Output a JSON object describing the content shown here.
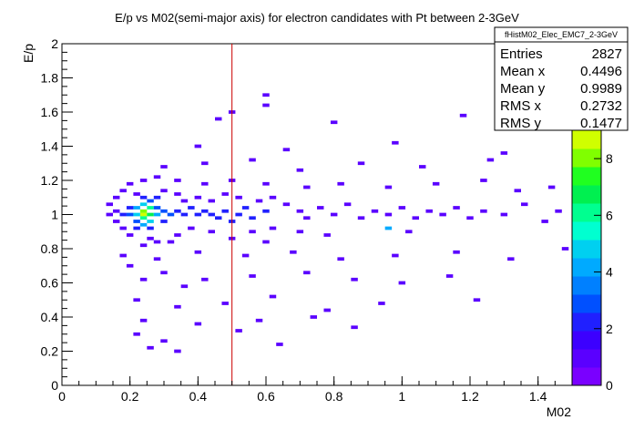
{
  "chart_data": {
    "type": "heatmap",
    "title": "E/p vs M02(semi-major axis) for electron candidates with Pt between 2-3GeV",
    "xlabel": "M02",
    "ylabel": "E/p",
    "xlim": [
      0,
      1.5
    ],
    "ylim": [
      0,
      2
    ],
    "x_ticks": [
      "0",
      "0.2",
      "0.4",
      "0.6",
      "0.8",
      "1",
      "1.2",
      "1.4"
    ],
    "y_ticks": [
      "0",
      "0.2",
      "0.4",
      "0.6",
      "0.8",
      "1",
      "1.2",
      "1.4",
      "1.6",
      "1.8",
      "2"
    ],
    "z_range": [
      0,
      9
    ],
    "z_ticks": [
      "0",
      "2",
      "4",
      "6",
      "8"
    ],
    "cut_line_x": 0.5,
    "stats": {
      "name": "fHistM02_Elec_EMC7_2-3GeV",
      "rows": [
        {
          "label": "Entries",
          "value": "2827"
        },
        {
          "label": "Mean x",
          "value": "0.4496"
        },
        {
          "label": "Mean y",
          "value": "0.9989"
        },
        {
          "label": "RMS x",
          "value": "0.2732"
        },
        {
          "label": "RMS y",
          "value": "0.1477"
        }
      ]
    },
    "palette": [
      "#7a00ff",
      "#5a00ff",
      "#3c00ff",
      "#2020ff",
      "#0050ff",
      "#0080ff",
      "#00aaff",
      "#00d0f0",
      "#00ffd0",
      "#00ff90",
      "#00f050",
      "#20ff20",
      "#80ff00",
      "#d0ff00"
    ],
    "cells": [
      [
        0.24,
        1.0,
        9
      ],
      [
        0.24,
        1.02,
        8
      ],
      [
        0.26,
        1.0,
        7
      ],
      [
        0.24,
        0.98,
        6
      ],
      [
        0.26,
        1.04,
        6
      ],
      [
        0.22,
        1.0,
        5
      ],
      [
        0.24,
        1.06,
        5
      ],
      [
        0.26,
        0.96,
        5
      ],
      [
        0.22,
        1.04,
        4
      ],
      [
        0.28,
        1.0,
        4
      ],
      [
        0.24,
        0.94,
        4
      ],
      [
        0.2,
        1.0,
        3
      ],
      [
        0.22,
        0.96,
        3
      ],
      [
        0.28,
        1.04,
        3
      ],
      [
        0.26,
        1.08,
        3
      ],
      [
        0.3,
        1.02,
        3
      ],
      [
        0.32,
        1.0,
        3
      ],
      [
        0.2,
        1.04,
        2
      ],
      [
        0.18,
        1.0,
        2
      ],
      [
        0.34,
        1.02,
        2
      ],
      [
        0.36,
        1.0,
        2
      ],
      [
        0.38,
        1.04,
        2
      ],
      [
        0.4,
        1.0,
        2
      ],
      [
        0.42,
        1.02,
        2
      ],
      [
        0.3,
        0.96,
        2
      ],
      [
        0.22,
        0.92,
        2
      ],
      [
        0.26,
        0.92,
        2
      ],
      [
        0.24,
        1.1,
        2
      ],
      [
        0.28,
        1.1,
        2
      ],
      [
        0.44,
        1.0,
        2
      ],
      [
        0.48,
        1.02,
        2
      ],
      [
        0.52,
        1.0,
        2
      ],
      [
        0.54,
        1.04,
        2
      ],
      [
        0.46,
        0.98,
        2
      ],
      [
        0.5,
        0.96,
        2
      ],
      [
        0.56,
        0.98,
        2
      ],
      [
        0.6,
        1.02,
        2
      ],
      [
        0.16,
        1.02,
        1
      ],
      [
        0.14,
        1.0,
        1
      ],
      [
        0.14,
        1.06,
        1
      ],
      [
        0.16,
        1.1,
        1
      ],
      [
        0.18,
        1.14,
        1
      ],
      [
        0.22,
        1.12,
        1
      ],
      [
        0.3,
        1.14,
        1
      ],
      [
        0.34,
        1.12,
        1
      ],
      [
        0.36,
        1.08,
        1
      ],
      [
        0.4,
        1.1,
        1
      ],
      [
        0.44,
        1.08,
        1
      ],
      [
        0.48,
        1.12,
        1
      ],
      [
        0.52,
        1.1,
        1
      ],
      [
        0.58,
        1.08,
        1
      ],
      [
        0.62,
        1.1,
        1
      ],
      [
        0.66,
        1.06,
        1
      ],
      [
        0.7,
        1.02,
        1
      ],
      [
        0.72,
        0.98,
        1
      ],
      [
        0.76,
        1.04,
        1
      ],
      [
        0.8,
        1.0,
        1
      ],
      [
        0.84,
        1.06,
        1
      ],
      [
        0.88,
        0.98,
        1
      ],
      [
        0.92,
        1.02,
        1
      ],
      [
        0.96,
        1.0,
        1
      ],
      [
        1.0,
        1.04,
        1
      ],
      [
        1.04,
        0.98,
        1
      ],
      [
        1.08,
        1.02,
        1
      ],
      [
        1.12,
        1.0,
        1
      ],
      [
        1.16,
        1.04,
        1
      ],
      [
        1.2,
        0.98,
        1
      ],
      [
        1.24,
        1.02,
        1
      ],
      [
        1.3,
        1.0,
        1
      ],
      [
        1.36,
        1.06,
        1
      ],
      [
        1.42,
        0.96,
        1
      ],
      [
        1.46,
        1.02,
        1
      ],
      [
        0.96,
        0.92,
        4
      ],
      [
        1.02,
        0.9,
        1
      ],
      [
        0.7,
        0.9,
        1
      ],
      [
        0.62,
        0.92,
        1
      ],
      [
        0.56,
        0.9,
        1
      ],
      [
        0.44,
        0.9,
        1
      ],
      [
        0.38,
        0.92,
        1
      ],
      [
        0.34,
        0.88,
        1
      ],
      [
        0.26,
        0.86,
        1
      ],
      [
        0.2,
        0.88,
        1
      ],
      [
        0.18,
        0.92,
        1
      ],
      [
        0.16,
        0.96,
        1
      ],
      [
        0.28,
        0.84,
        1
      ],
      [
        0.24,
        0.82,
        1
      ],
      [
        0.32,
        0.84,
        1
      ],
      [
        0.5,
        0.86,
        1
      ],
      [
        0.6,
        0.84,
        1
      ],
      [
        0.78,
        0.88,
        1
      ],
      [
        0.2,
        1.18,
        1
      ],
      [
        0.24,
        1.2,
        1
      ],
      [
        0.28,
        1.22,
        1
      ],
      [
        0.34,
        1.2,
        1
      ],
      [
        0.42,
        1.18,
        1
      ],
      [
        0.5,
        1.2,
        1
      ],
      [
        0.6,
        1.18,
        1
      ],
      [
        0.72,
        1.16,
        1
      ],
      [
        0.82,
        1.18,
        1
      ],
      [
        0.96,
        1.16,
        1
      ],
      [
        1.1,
        1.18,
        1
      ],
      [
        1.24,
        1.2,
        1
      ],
      [
        1.34,
        1.14,
        1
      ],
      [
        1.44,
        1.16,
        1
      ],
      [
        0.3,
        1.28,
        1
      ],
      [
        0.42,
        1.3,
        1
      ],
      [
        0.56,
        1.32,
        1
      ],
      [
        0.7,
        1.26,
        1
      ],
      [
        0.88,
        1.3,
        1
      ],
      [
        1.06,
        1.28,
        1
      ],
      [
        1.26,
        1.32,
        1
      ],
      [
        0.4,
        1.4,
        1
      ],
      [
        0.66,
        1.38,
        1
      ],
      [
        0.98,
        1.42,
        1
      ],
      [
        1.3,
        1.36,
        1
      ],
      [
        0.46,
        1.56,
        1
      ],
      [
        0.8,
        1.54,
        1
      ],
      [
        1.18,
        1.58,
        1
      ],
      [
        0.6,
        1.64,
        1
      ],
      [
        1.4,
        1.62,
        1
      ],
      [
        0.6,
        1.7,
        1
      ],
      [
        1.48,
        1.62,
        1
      ],
      [
        0.5,
        1.6,
        1
      ],
      [
        0.24,
        0.62,
        1
      ],
      [
        0.3,
        0.66,
        1
      ],
      [
        0.36,
        0.58,
        1
      ],
      [
        0.2,
        0.7,
        1
      ],
      [
        0.42,
        0.62,
        1
      ],
      [
        0.56,
        0.64,
        1
      ],
      [
        0.72,
        0.66,
        1
      ],
      [
        0.86,
        0.62,
        1
      ],
      [
        1.0,
        0.6,
        1
      ],
      [
        1.14,
        0.64,
        1
      ],
      [
        0.22,
        0.5,
        1
      ],
      [
        0.34,
        0.46,
        1
      ],
      [
        0.48,
        0.48,
        1
      ],
      [
        0.62,
        0.52,
        1
      ],
      [
        0.78,
        0.44,
        1
      ],
      [
        0.94,
        0.48,
        1
      ],
      [
        1.22,
        0.5,
        1
      ],
      [
        0.24,
        0.38,
        1
      ],
      [
        0.4,
        0.36,
        1
      ],
      [
        0.58,
        0.38,
        1
      ],
      [
        0.74,
        0.4,
        1
      ],
      [
        0.22,
        0.3,
        1
      ],
      [
        0.3,
        0.26,
        1
      ],
      [
        0.52,
        0.32,
        1
      ],
      [
        0.86,
        0.34,
        1
      ],
      [
        0.26,
        0.22,
        1
      ],
      [
        0.34,
        0.2,
        1
      ],
      [
        0.64,
        0.24,
        1
      ],
      [
        0.18,
        0.76,
        1
      ],
      [
        0.28,
        0.74,
        1
      ],
      [
        0.4,
        0.78,
        1
      ],
      [
        0.54,
        0.76,
        1
      ],
      [
        0.68,
        0.78,
        1
      ],
      [
        0.82,
        0.74,
        1
      ],
      [
        0.98,
        0.76,
        1
      ],
      [
        1.16,
        0.78,
        1
      ],
      [
        1.32,
        0.74,
        1
      ],
      [
        1.48,
        0.8,
        1
      ]
    ]
  }
}
